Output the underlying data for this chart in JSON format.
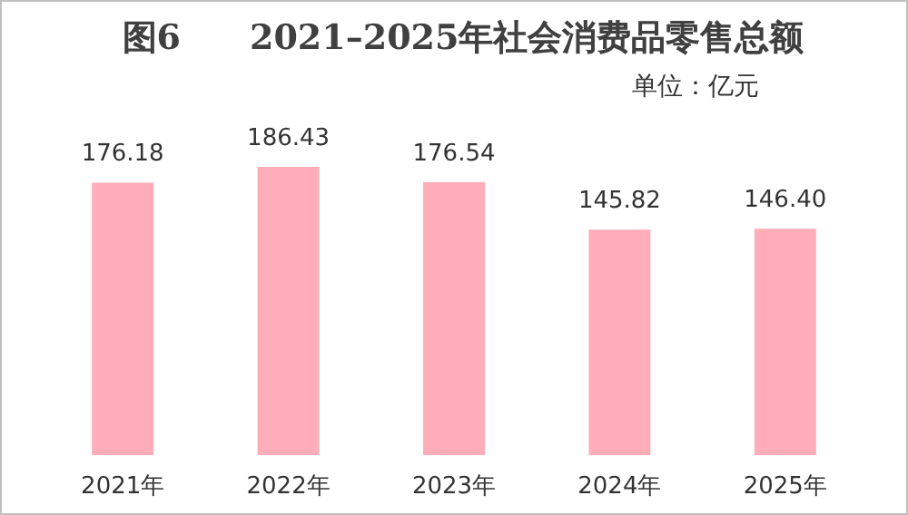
{
  "chart_data": {
    "type": "bar",
    "title": "图6　　2021–2025年社会消费品零售总额",
    "annotations": [
      "单位：亿元"
    ],
    "categories": [
      "2021年",
      "2022年",
      "2023年",
      "2024年",
      "2025年"
    ],
    "values": [
      176.18,
      186.43,
      176.54,
      145.82,
      146.4
    ],
    "value_labels": [
      "176.18",
      "186.43",
      "176.54",
      "145.82",
      "146.40"
    ],
    "color": "#ffadb9"
  }
}
